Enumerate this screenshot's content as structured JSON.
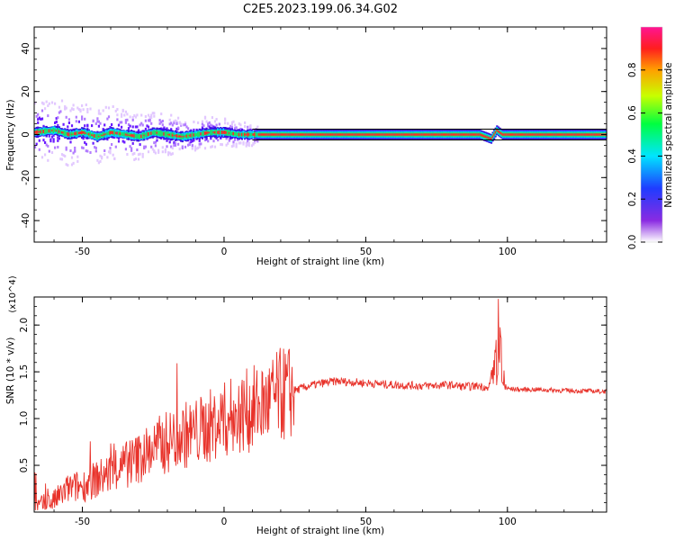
{
  "title": "C2E5.2023.199.06.34.G02",
  "colors": {
    "snr_line": "#e8322a",
    "frame": "#000000"
  },
  "chart_data": [
    {
      "type": "heatmap",
      "xlabel": "Height of straight line (km)",
      "ylabel": "Frequency (Hz)",
      "xlim": [
        -67,
        135
      ],
      "ylim": [
        -50,
        50
      ],
      "xticks": [
        -50,
        0,
        50,
        100
      ],
      "yticks": [
        -40,
        -20,
        0,
        20,
        40
      ],
      "colorbar": {
        "label": "Normalized spectral amplitude",
        "range": [
          0,
          1
        ],
        "ticks": [
          "0.0",
          "0.2",
          "0.4",
          "0.6",
          "0.8"
        ]
      },
      "ridge": {
        "x": [
          -67,
          -60,
          -55,
          -50,
          -45,
          -40,
          -35,
          -30,
          -25,
          -20,
          -15,
          -10,
          -5,
          0,
          5,
          10,
          20,
          40,
          60,
          80,
          90,
          94,
          96,
          98,
          110,
          135
        ],
        "y": [
          1,
          2,
          0,
          1,
          -1,
          1,
          0,
          -1,
          1,
          0,
          -1,
          0,
          1,
          1,
          0,
          0,
          0,
          0,
          0,
          0,
          0,
          -2,
          2,
          0,
          0,
          0
        ]
      }
    },
    {
      "type": "line",
      "xlabel": "Height of straight line (km)",
      "ylabel": "SNR (10 * v/v)",
      "y_multiplier": "(x10^4)",
      "xlim": [
        -67,
        135
      ],
      "ylim": [
        0,
        23000
      ],
      "xticks": [
        -50,
        0,
        50,
        100
      ],
      "yticks": [
        5000,
        10000,
        15000,
        20000
      ],
      "ytick_labels": [
        "0.5",
        "1.0",
        "1.5",
        "2.0"
      ],
      "series": [
        {
          "x": [
            -67,
            -60,
            -55,
            -50,
            -45,
            -40,
            -35,
            -30,
            -25,
            -20,
            -15,
            -10,
            -5,
            0,
            5,
            10,
            15,
            20,
            25,
            30,
            35,
            40,
            50,
            60,
            70,
            80,
            85,
            90,
            93,
            95,
            96,
            97,
            98,
            99,
            100,
            105,
            110,
            120,
            135
          ],
          "y": [
            500,
            1200,
            2500,
            2800,
            3500,
            4200,
            5000,
            5800,
            6800,
            7500,
            8200,
            8500,
            9200,
            9800,
            10500,
            11000,
            11600,
            12500,
            13000,
            13500,
            13800,
            14000,
            13800,
            13600,
            13500,
            13600,
            13400,
            13500,
            13300,
            15000,
            17000,
            18500,
            14000,
            13500,
            13200,
            13100,
            13100,
            13000,
            12900
          ]
        }
      ]
    }
  ]
}
